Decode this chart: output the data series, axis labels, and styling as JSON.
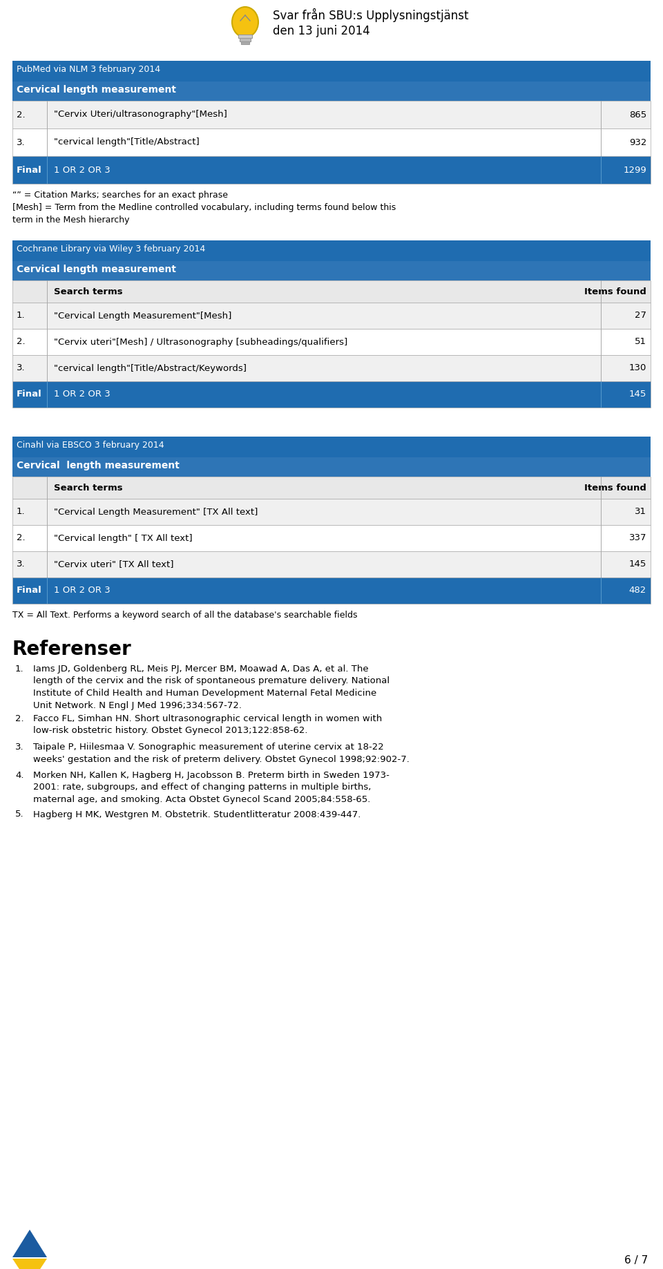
{
  "header_text": "Svar från SBU:s Upplysningstjänst\nden 13 juni 2014",
  "blue_dark": "#1F6CB0",
  "blue_mid": "#2E75B6",
  "white": "#FFFFFF",
  "black": "#000000",
  "border_color": "#AAAAAA",
  "light_gray": "#F0F0F0",
  "pubmed_header": "PubMed via NLM 3 february 2014",
  "pubmed_subheader": "Cervical length measurement",
  "pubmed_rows": [
    {
      "num": "2.",
      "term": "\"Cervix Uteri/ultrasonography\"[Mesh]",
      "count": "865",
      "final": false
    },
    {
      "num": "3.",
      "term": "\"cervical length\"[Title/Abstract]",
      "count": "932",
      "final": false
    },
    {
      "num": "Final",
      "term": "1 OR 2 OR 3",
      "count": "1299",
      "final": true
    }
  ],
  "pubmed_note": "“” = Citation Marks; searches for an exact phrase\n[Mesh] = Term from the Medline controlled vocabulary, including terms found below this\nterm in the Mesh hierarchy",
  "cochrane_header": "Cochrane Library via Wiley 3 february 2014",
  "cochrane_subheader": "Cervical length measurement",
  "cochrane_col_headers": [
    "Search terms",
    "Items found"
  ],
  "cochrane_rows": [
    {
      "num": "1.",
      "term": "\"Cervical Length Measurement\"[Mesh]",
      "count": "27",
      "final": false
    },
    {
      "num": "2.",
      "term": "\"Cervix uteri\"[Mesh] / Ultrasonography [subheadings/qualifiers]",
      "count": "51",
      "final": false
    },
    {
      "num": "3.",
      "term": "\"cervical length\"[Title/Abstract/Keywords]",
      "count": "130",
      "final": false
    },
    {
      "num": "Final",
      "term": "1 OR 2 OR 3",
      "count": "145",
      "final": true
    }
  ],
  "cinahl_header": "Cinahl via EBSCO 3 february 2014",
  "cinahl_subheader": "Cervical  length measurement",
  "cinahl_col_headers": [
    "Search terms",
    "Items found"
  ],
  "cinahl_rows": [
    {
      "num": "1.",
      "term": "\"Cervical Length Measurement\" [TX All text]",
      "count": "31",
      "final": false
    },
    {
      "num": "2.",
      "term": "\"Cervical length\" [ TX All text]",
      "count": "337",
      "final": false
    },
    {
      "num": "3.",
      "term": "\"Cervix uteri\" [TX All text]",
      "count": "145",
      "final": false
    },
    {
      "num": "Final",
      "term": "1 OR 2 OR 3",
      "count": "482",
      "final": true
    }
  ],
  "cinahl_note": "TX = All Text. Performs a keyword search of all the database's searchable fields",
  "references_title": "Referenser",
  "references": [
    [
      "1.",
      "Iams JD, Goldenberg RL, Meis PJ, Mercer BM, Moawad A, Das A, et al. The\nlength of the cervix and the risk of spontaneous premature delivery. National\nInstitute of Child Health and Human Development Maternal Fetal Medicine\nUnit Network. N Engl J Med 1996;334:567-72."
    ],
    [
      "2.",
      "Facco FL, Simhan HN. Short ultrasonographic cervical length in women with\nlow-risk obstetric history. Obstet Gynecol 2013;122:858-62."
    ],
    [
      "3.",
      "Taipale P, Hiilesmaa V. Sonographic measurement of uterine cervix at 18-22\nweeks' gestation and the risk of preterm delivery. Obstet Gynecol 1998;92:902-7."
    ],
    [
      "4.",
      "Morken NH, Kallen K, Hagberg H, Jacobsson B. Preterm birth in Sweden 1973-\n2001: rate, subgroups, and effect of changing patterns in multiple births,\nmaternal age, and smoking. Acta Obstet Gynecol Scand 2005;84:558-65."
    ],
    [
      "5.",
      "Hagberg H MK, Westgren M. Obstetrik. Studentlitteratur 2008:439-447."
    ]
  ],
  "footer_right": "6 / 7"
}
